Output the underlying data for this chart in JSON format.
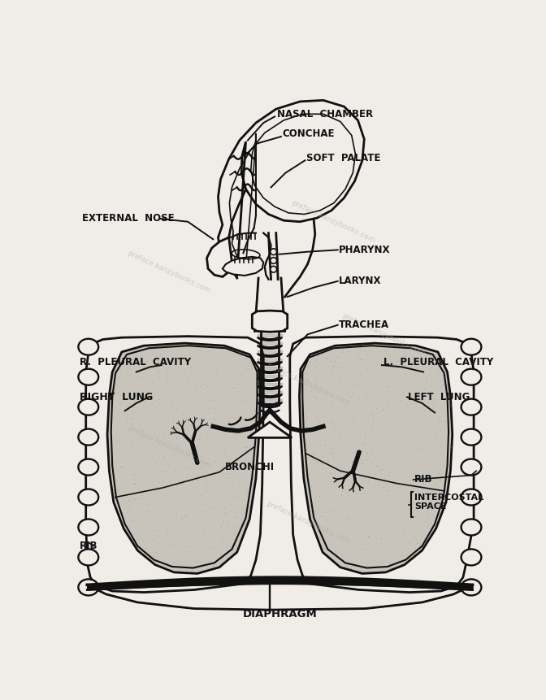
{
  "bg_color": "#f0ede8",
  "line_color": "#111111",
  "fill_lung": "#c8c4bc",
  "fill_white": "#f0ede8",
  "labels": {
    "nasal_chamber": "NASAL  CHAMBER",
    "conchae": "CONCHAE",
    "soft_palate": "SOFT  PALATE",
    "external_nose": "EXTERNAL  NOSE",
    "pharynx": "PHARYNX",
    "larynx": "LARYNX",
    "trachea": "TRACHEA",
    "r_pleural": "R.  PLEURAL  CAVITY",
    "l_pleural": "L.  PLEURAL  CAVITY",
    "right_lung": "RIGHT  LUNG",
    "left_lung": "LEFT  LUNG",
    "bronchi": "BRONCHI",
    "rib_left": "RIB",
    "rib_right": "RIB",
    "intercostal": "INTERCOSTAL\nSPACE",
    "diaphragm": "DIAPHRAGM"
  },
  "fontsize_labels": 8.5,
  "lw_main": 2.0,
  "lw_thin": 1.2
}
